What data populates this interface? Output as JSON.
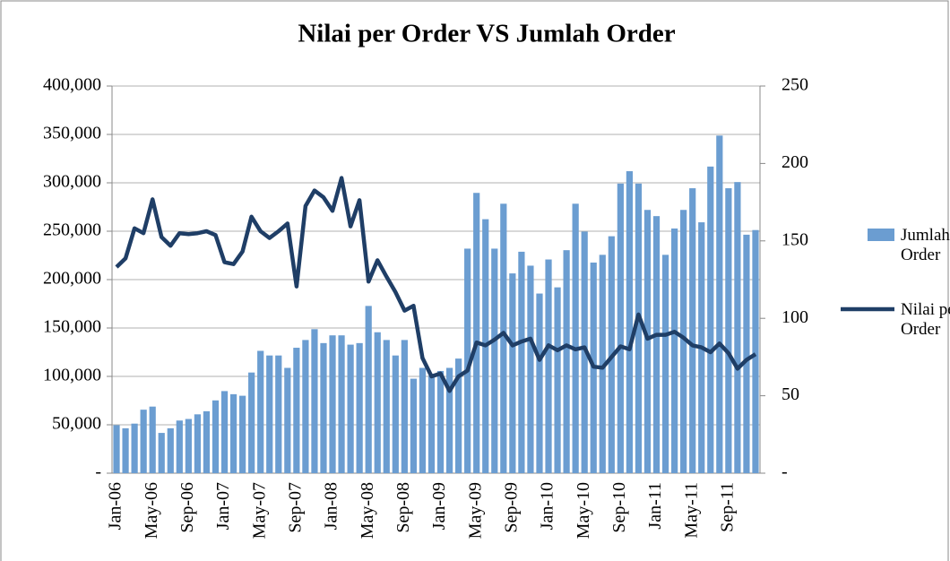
{
  "chart_data": {
    "type": "bar-line",
    "title": "Nilai per Order VS Jumlah Order",
    "categories": [
      "Jan-06",
      null,
      null,
      null,
      "May-06",
      null,
      null,
      null,
      "Sep-06",
      null,
      null,
      null,
      "Jan-07",
      null,
      null,
      null,
      "May-07",
      null,
      null,
      null,
      "Sep-07",
      null,
      null,
      null,
      "Jan-08",
      null,
      null,
      null,
      "May-08",
      null,
      null,
      null,
      "Sep-08",
      null,
      null,
      null,
      "Jan-09",
      null,
      null,
      null,
      "May-09",
      null,
      null,
      null,
      "Sep-09",
      null,
      null,
      null,
      "Jan-10",
      null,
      null,
      null,
      "May-10",
      null,
      null,
      null,
      "Sep-10",
      null,
      null,
      null,
      "Jan-11",
      null,
      null,
      null,
      "May-11",
      null,
      null,
      null,
      "Sep-11",
      null,
      null,
      null
    ],
    "series": [
      {
        "name": "Jumlah Order",
        "type": "bar",
        "axis": "y2",
        "color": "#6b9dd1",
        "values": [
          31,
          29,
          32,
          41,
          43,
          26,
          29,
          34,
          35,
          38,
          40,
          47,
          53,
          51,
          50,
          65,
          79,
          76,
          76,
          68,
          81,
          86,
          93,
          84,
          89,
          89,
          83,
          84,
          108,
          91,
          86,
          76,
          86,
          61,
          68,
          63,
          66,
          68,
          74,
          145,
          181,
          164,
          145,
          174,
          129,
          143,
          134,
          116,
          138,
          120,
          144,
          174,
          156,
          136,
          141,
          153,
          187,
          195,
          187,
          170,
          166,
          141,
          158,
          170,
          184,
          162,
          198,
          218,
          184,
          188,
          154,
          157
        ]
      },
      {
        "name": "Nilai per Order",
        "type": "line",
        "axis": "y",
        "color": "#1f3e66",
        "values": [
          213000,
          222000,
          253000,
          248000,
          283000,
          244000,
          235000,
          248000,
          247000,
          248000,
          250000,
          246000,
          218000,
          216000,
          229000,
          265000,
          250000,
          243000,
          250000,
          258000,
          193000,
          276000,
          292000,
          285000,
          271000,
          305000,
          255000,
          282000,
          198000,
          220000,
          203000,
          187000,
          168000,
          173000,
          119000,
          100000,
          103000,
          85000,
          100000,
          106000,
          135000,
          132000,
          138000,
          145000,
          132000,
          136000,
          139000,
          117000,
          132000,
          127000,
          132000,
          128000,
          130000,
          110000,
          109000,
          120000,
          131000,
          128000,
          164000,
          139000,
          143000,
          143000,
          146000,
          140000,
          132000,
          130000,
          125000,
          134000,
          124000,
          108000,
          117000,
          123000
        ]
      }
    ],
    "ylim": [
      0,
      400000
    ],
    "yticks": [
      {
        "value": 0,
        "label": "-"
      },
      {
        "value": 50000,
        "label": "50,000"
      },
      {
        "value": 100000,
        "label": "100,000"
      },
      {
        "value": 150000,
        "label": "150,000"
      },
      {
        "value": 200000,
        "label": "200,000"
      },
      {
        "value": 250000,
        "label": "250,000"
      },
      {
        "value": 300000,
        "label": "300,000"
      },
      {
        "value": 350000,
        "label": "350,000"
      },
      {
        "value": 400000,
        "label": "400,000"
      }
    ],
    "y2lim": [
      0,
      250
    ],
    "y2ticks": [
      {
        "value": 0,
        "label": "-"
      },
      50,
      100,
      150,
      200,
      250
    ],
    "grid": true,
    "legend": "right"
  }
}
